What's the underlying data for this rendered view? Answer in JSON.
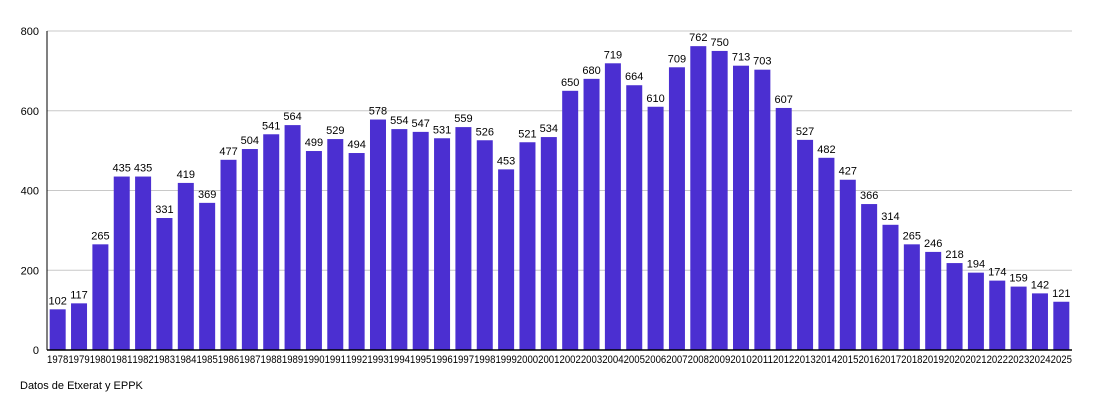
{
  "chart_data": {
    "type": "bar",
    "title": "",
    "xlabel": "",
    "ylabel": "",
    "ylim": [
      0,
      800
    ],
    "yticks": [
      0,
      200,
      400,
      600,
      800
    ],
    "grid": true,
    "bar_color": "#4b2fd1",
    "categories": [
      "1978",
      "1979",
      "1980",
      "1981",
      "1982",
      "1983",
      "1984",
      "1985",
      "1986",
      "1987",
      "1988",
      "1989",
      "1990",
      "1991",
      "1992",
      "1993",
      "1994",
      "1995",
      "1996",
      "1997",
      "1998",
      "1999",
      "2000",
      "2001",
      "2002",
      "2003",
      "2004",
      "2005",
      "2006",
      "2007",
      "2008",
      "2009",
      "2010",
      "2011",
      "2012",
      "2013",
      "2014",
      "2015",
      "2016",
      "2017",
      "2018",
      "2019",
      "2020",
      "2021",
      "2022",
      "2023",
      "2024",
      "2025"
    ],
    "values": [
      102,
      117,
      265,
      435,
      435,
      331,
      419,
      369,
      477,
      504,
      541,
      564,
      499,
      529,
      494,
      578,
      554,
      547,
      531,
      559,
      526,
      453,
      521,
      534,
      650,
      680,
      719,
      664,
      610,
      709,
      762,
      750,
      713,
      703,
      607,
      527,
      482,
      427,
      366,
      314,
      265,
      246,
      218,
      194,
      174,
      159,
      142,
      121
    ]
  },
  "source": "Datos de Etxerat y EPPK"
}
